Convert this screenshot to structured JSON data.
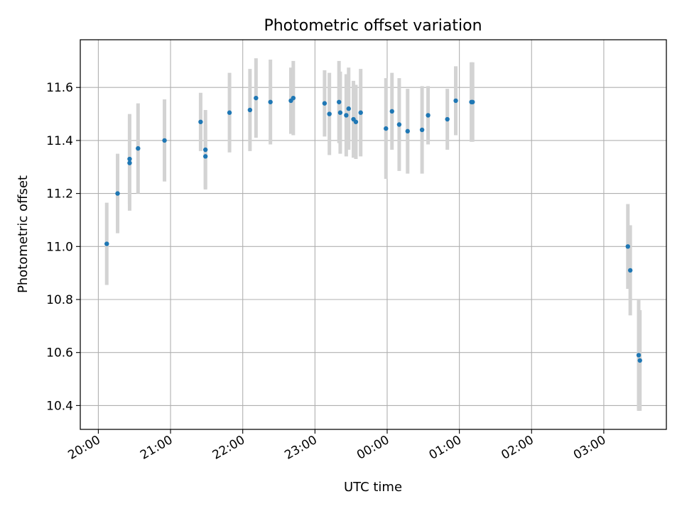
{
  "chart_data": {
    "type": "scatter",
    "title": "Photometric offset variation",
    "xlabel": "UTC time",
    "ylabel": "Photometric offset",
    "x_ticks": [
      "20:00",
      "21:00",
      "22:00",
      "23:00",
      "00:00",
      "01:00",
      "02:00",
      "03:00"
    ],
    "y_ticks": [
      "10.4",
      "10.6",
      "10.8",
      "11.0",
      "11.2",
      "11.4",
      "11.6"
    ],
    "xlim": [
      "19:45",
      "03:52"
    ],
    "ylim": [
      10.31,
      11.78
    ],
    "grid": true,
    "colors": {
      "points": "#1f77b4",
      "errorbars": "#d3d3d3",
      "grid": "#b0b0b0"
    },
    "points": [
      {
        "x": "20:07",
        "y": 11.01,
        "err": 0.155
      },
      {
        "x": "20:16",
        "y": 11.2,
        "err": 0.15
      },
      {
        "x": "20:26",
        "y": 11.33,
        "err": 0.17
      },
      {
        "x": "20:26",
        "y": 11.315,
        "err": 0.18
      },
      {
        "x": "20:33",
        "y": 11.37,
        "err": 0.17
      },
      {
        "x": "20:55",
        "y": 11.4,
        "err": 0.155
      },
      {
        "x": "21:25",
        "y": 11.47,
        "err": 0.11
      },
      {
        "x": "21:29",
        "y": 11.365,
        "err": 0.15
      },
      {
        "x": "21:29",
        "y": 11.34,
        "err": 0.12
      },
      {
        "x": "21:49",
        "y": 11.505,
        "err": 0.15
      },
      {
        "x": "22:06",
        "y": 11.515,
        "err": 0.155
      },
      {
        "x": "22:11",
        "y": 11.56,
        "err": 0.15
      },
      {
        "x": "22:23",
        "y": 11.545,
        "err": 0.16
      },
      {
        "x": "22:40",
        "y": 11.55,
        "err": 0.125
      },
      {
        "x": "22:42",
        "y": 11.56,
        "err": 0.14
      },
      {
        "x": "23:08",
        "y": 11.54,
        "err": 0.125
      },
      {
        "x": "23:12",
        "y": 11.5,
        "err": 0.155
      },
      {
        "x": "23:20",
        "y": 11.545,
        "err": 0.155
      },
      {
        "x": "23:21",
        "y": 11.505,
        "err": 0.155
      },
      {
        "x": "23:26",
        "y": 11.495,
        "err": 0.155
      },
      {
        "x": "23:28",
        "y": 11.52,
        "err": 0.155
      },
      {
        "x": "23:32",
        "y": 11.48,
        "err": 0.145
      },
      {
        "x": "23:34",
        "y": 11.47,
        "err": 0.14
      },
      {
        "x": "23:38",
        "y": 11.505,
        "err": 0.165
      },
      {
        "x": "23:59",
        "y": 11.445,
        "err": 0.19
      },
      {
        "x": "00:04",
        "y": 11.51,
        "err": 0.145
      },
      {
        "x": "00:10",
        "y": 11.46,
        "err": 0.175
      },
      {
        "x": "00:17",
        "y": 11.435,
        "err": 0.16
      },
      {
        "x": "00:29",
        "y": 11.44,
        "err": 0.165
      },
      {
        "x": "00:34",
        "y": 11.495,
        "err": 0.11
      },
      {
        "x": "00:50",
        "y": 11.48,
        "err": 0.115
      },
      {
        "x": "00:57",
        "y": 11.55,
        "err": 0.13
      },
      {
        "x": "01:10",
        "y": 11.545,
        "err": 0.15
      },
      {
        "x": "01:11",
        "y": 11.545,
        "err": 0.15
      },
      {
        "x": "03:20",
        "y": 11.0,
        "err": 0.16
      },
      {
        "x": "03:22",
        "y": 10.91,
        "err": 0.17
      },
      {
        "x": "03:29",
        "y": 10.59,
        "err": 0.21
      },
      {
        "x": "03:30",
        "y": 10.57,
        "err": 0.19
      }
    ]
  }
}
